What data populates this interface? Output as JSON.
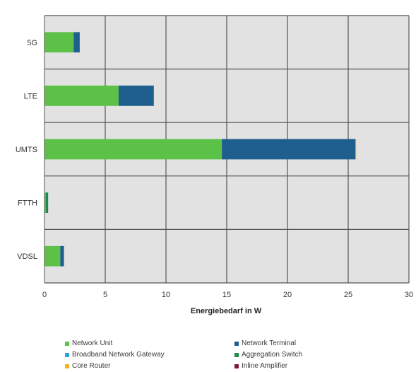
{
  "chart_data": {
    "type": "bar",
    "orientation": "horizontal",
    "stacked": true,
    "categories": [
      "5G",
      "LTE",
      "UMTS",
      "FTTH",
      "VDSL"
    ],
    "series": [
      {
        "name": "Network Unit",
        "color": "#5cc247",
        "values": [
          2.4,
          6.1,
          14.6,
          0.1,
          1.3
        ]
      },
      {
        "name": "Network Terminal",
        "color": "#1f5f8e",
        "values": [
          0.5,
          2.9,
          11.0,
          0.0,
          0.3
        ]
      },
      {
        "name": "Broadband Network Gateway",
        "color": "#2aa3dc",
        "values": [
          0,
          0,
          0,
          0,
          0
        ]
      },
      {
        "name": "Aggregation Switch",
        "color": "#1f8a4a",
        "values": [
          0,
          0,
          0,
          0.2,
          0
        ]
      },
      {
        "name": "Core Router",
        "color": "#f5b21b",
        "values": [
          0,
          0,
          0.05,
          0,
          0
        ]
      },
      {
        "name": "Inline Amplifier",
        "color": "#7a1a3a",
        "values": [
          0,
          0,
          0,
          0,
          0
        ]
      }
    ],
    "xlabel": "Energiebedarf in W",
    "xlim": [
      0,
      30
    ],
    "xticks": [
      0,
      5,
      10,
      15,
      20,
      25,
      30
    ],
    "grid": true,
    "legend_position": "bottom"
  }
}
